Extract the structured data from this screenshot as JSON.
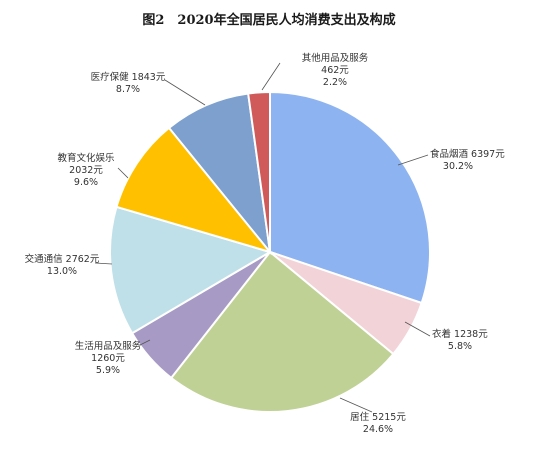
{
  "chart_data": {
    "type": "pie",
    "title": "图2　2020年全国居民人均消费支出及构成",
    "slices": [
      {
        "name": "食品烟酒",
        "value": 6397,
        "value_text": "6397元",
        "percent_text": "30.2%",
        "color": "#8DB4F0"
      },
      {
        "name": "衣着",
        "value": 1238,
        "value_text": "1238元",
        "percent_text": "5.8%",
        "color": "#F2D3D8"
      },
      {
        "name": "居住",
        "value": 5215,
        "value_text": "5215元",
        "percent_text": "24.6%",
        "color": "#BFD194"
      },
      {
        "name": "生活用品及服务",
        "value": 1260,
        "value_text": "1260元",
        "percent_text": "5.9%",
        "color": "#A79BC6"
      },
      {
        "name": "交通通信",
        "value": 2762,
        "value_text": "2762元",
        "percent_text": "13.0%",
        "color": "#BFE0E8"
      },
      {
        "name": "教育文化娱乐",
        "value": 2032,
        "value_text": "2032元",
        "percent_text": "9.6%",
        "color": "#FFC000"
      },
      {
        "name": "医疗保健",
        "value": 1843,
        "value_text": "1843元",
        "percent_text": "8.7%",
        "color": "#7DA0CE"
      },
      {
        "name": "其他用品及服务",
        "value": 462,
        "value_text": "462元",
        "percent_text": "2.2%",
        "color": "#D05A5A"
      }
    ],
    "start_angle_deg": 0,
    "direction": "clockwise",
    "legend": "none"
  }
}
